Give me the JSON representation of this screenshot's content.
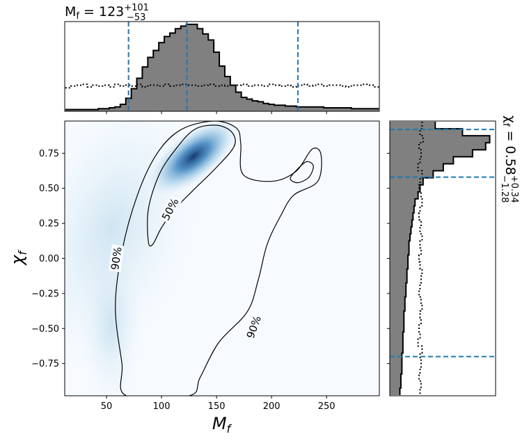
{
  "chart_data": [
    {
      "type": "area",
      "panel": "top-marginal",
      "title": "M_f = 123 (+101 / −53)",
      "title_parts": {
        "base": "M",
        "sub": "f",
        "eq": " = 123",
        "sup": "+101",
        "low": "−53"
      },
      "x": [
        15,
        20,
        25,
        30,
        35,
        40,
        45,
        50,
        55,
        60,
        65,
        70,
        75,
        80,
        85,
        90,
        95,
        100,
        105,
        110,
        115,
        120,
        125,
        130,
        135,
        140,
        145,
        150,
        155,
        160,
        165,
        170,
        175,
        180,
        185,
        190,
        195,
        200,
        205,
        210,
        215,
        220,
        225,
        230,
        235,
        240,
        245,
        250,
        255,
        260,
        265,
        270,
        275,
        280,
        285,
        290,
        295
      ],
      "series": [
        {
          "style": "filled-step",
          "values": [
            0.02,
            0.02,
            0.02,
            0.02,
            0.02,
            0.02,
            0.03,
            0.03,
            0.04,
            0.05,
            0.08,
            0.15,
            0.26,
            0.38,
            0.51,
            0.62,
            0.7,
            0.79,
            0.86,
            0.9,
            0.95,
            0.98,
            1.0,
            1.0,
            0.95,
            0.89,
            0.82,
            0.68,
            0.52,
            0.4,
            0.3,
            0.22,
            0.16,
            0.14,
            0.12,
            0.11,
            0.09,
            0.08,
            0.07,
            0.07,
            0.06,
            0.06,
            0.05,
            0.05,
            0.05,
            0.05,
            0.05,
            0.04,
            0.04,
            0.04,
            0.04,
            0.04,
            0.03,
            0.03,
            0.03,
            0.03,
            0.03
          ]
        },
        {
          "style": "dotted-prior",
          "values": [
            0.27,
            0.29,
            0.3,
            0.31,
            0.28,
            0.3,
            0.29,
            0.3,
            0.28,
            0.31,
            0.29,
            0.3,
            0.29,
            0.31,
            0.28,
            0.3,
            0.3,
            0.29,
            0.31,
            0.29,
            0.3,
            0.31,
            0.3,
            0.3,
            0.29,
            0.3,
            0.31,
            0.29,
            0.3,
            0.29,
            0.3,
            0.3,
            0.31,
            0.29,
            0.3,
            0.3,
            0.29,
            0.31,
            0.3,
            0.29,
            0.3,
            0.28,
            0.3,
            0.31,
            0.29,
            0.3,
            0.31,
            0.29,
            0.3,
            0.3,
            0.29,
            0.28,
            0.3,
            0.3,
            0.31,
            0.3,
            0.28
          ]
        }
      ],
      "vlines": [
        70,
        123,
        224
      ],
      "xlim": [
        12,
        298
      ]
    },
    {
      "type": "heatmap",
      "panel": "joint",
      "xlabel": "M_f",
      "ylabel": "χ_f",
      "xlim": [
        12,
        298
      ],
      "ylim": [
        -0.98,
        0.98
      ],
      "xticks": [
        "50",
        "100",
        "150",
        "200",
        "250"
      ],
      "yticks": [
        "0.75",
        "0.50",
        "0.25",
        "0.00",
        "−0.25",
        "−0.50",
        "−0.75"
      ],
      "contour_labels": [
        "90%",
        "50%",
        "90%"
      ],
      "contour_90": [
        [
          68,
          -0.98
        ],
        [
          64,
          -0.75
        ],
        [
          58,
          -0.35
        ],
        [
          64,
          0.05
        ],
        [
          78,
          0.45
        ],
        [
          96,
          0.75
        ],
        [
          118,
          0.92
        ],
        [
          148,
          0.98
        ],
        [
          168,
          0.93
        ],
        [
          172,
          0.82
        ],
        [
          174,
          0.6
        ],
        [
          200,
          0.55
        ],
        [
          222,
          0.62
        ],
        [
          237,
          0.78
        ],
        [
          245,
          0.74
        ],
        [
          242,
          0.55
        ],
        [
          220,
          0.45
        ],
        [
          208,
          0.3
        ],
        [
          196,
          0.1
        ],
        [
          188,
          -0.15
        ],
        [
          178,
          -0.38
        ],
        [
          152,
          -0.6
        ],
        [
          135,
          -0.85
        ],
        [
          125,
          -0.98
        ]
      ],
      "contour_90_island": [
        [
          217,
          0.57
        ],
        [
          224,
          0.64
        ],
        [
          232,
          0.69
        ],
        [
          238,
          0.66
        ],
        [
          234,
          0.58
        ],
        [
          224,
          0.54
        ]
      ],
      "contour_50": [
        [
          88,
          0.12
        ],
        [
          88,
          0.35
        ],
        [
          98,
          0.6
        ],
        [
          113,
          0.78
        ],
        [
          130,
          0.92
        ],
        [
          150,
          0.95
        ],
        [
          164,
          0.9
        ],
        [
          166,
          0.8
        ],
        [
          150,
          0.65
        ],
        [
          128,
          0.48
        ],
        [
          112,
          0.35
        ],
        [
          100,
          0.22
        ],
        [
          92,
          0.1
        ]
      ]
    },
    {
      "type": "area",
      "panel": "right-marginal",
      "title": "χ_f = 0.58 (+0.34 / −1.28)",
      "title_parts": {
        "base": "χ",
        "sub": "f",
        "eq": " = 0.58",
        "sup": "+0.34",
        "low": "−1.28"
      },
      "y": [
        0.95,
        0.9,
        0.85,
        0.8,
        0.75,
        0.7,
        0.65,
        0.6,
        0.55,
        0.5,
        0.45,
        0.4,
        0.35,
        0.3,
        0.25,
        0.2,
        0.15,
        0.1,
        0.05,
        0.0,
        -0.05,
        -0.1,
        -0.15,
        -0.2,
        -0.25,
        -0.3,
        -0.35,
        -0.4,
        -0.45,
        -0.5,
        -0.55,
        -0.6,
        -0.65,
        -0.7,
        -0.75,
        -0.8,
        -0.85,
        -0.9,
        -0.95
      ],
      "series": [
        {
          "style": "filled-step",
          "values": [
            0.45,
            0.72,
            0.99,
            0.95,
            0.82,
            0.63,
            0.53,
            0.43,
            0.33,
            0.3,
            0.28,
            0.25,
            0.24,
            0.23,
            0.22,
            0.21,
            0.2,
            0.19,
            0.19,
            0.18,
            0.18,
            0.17,
            0.17,
            0.16,
            0.16,
            0.15,
            0.15,
            0.14,
            0.14,
            0.14,
            0.13,
            0.13,
            0.13,
            0.12,
            0.12,
            0.12,
            0.11,
            0.11,
            0.1
          ]
        },
        {
          "style": "dotted-prior",
          "values": [
            0.32,
            0.3,
            0.33,
            0.29,
            0.31,
            0.3,
            0.28,
            0.32,
            0.3,
            0.29,
            0.31,
            0.32,
            0.3,
            0.29,
            0.31,
            0.3,
            0.32,
            0.3,
            0.31,
            0.29,
            0.3,
            0.32,
            0.31,
            0.3,
            0.29,
            0.31,
            0.32,
            0.3,
            0.31,
            0.29,
            0.3,
            0.28,
            0.32,
            0.3,
            0.31,
            0.3,
            0.29,
            0.31,
            0.3
          ]
        }
      ],
      "hlines": [
        0.92,
        0.58,
        -0.7
      ],
      "ylim": [
        -0.98,
        0.98
      ]
    }
  ],
  "colors": {
    "hist_fill": "#808080",
    "interval_line": "#1f77b4",
    "density": "#08306b"
  }
}
